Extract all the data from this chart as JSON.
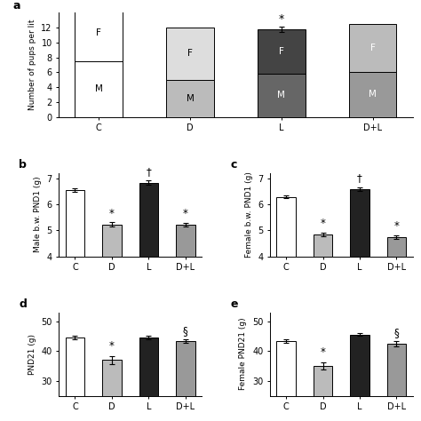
{
  "panel_a": {
    "categories": [
      "C",
      "D",
      "L",
      "D+L"
    ],
    "male_values": [
      7.5,
      5.0,
      5.8,
      6.0
    ],
    "female_values": [
      7.5,
      7.0,
      6.0,
      6.5
    ],
    "male_colors": [
      "#ffffff",
      "#bbbbbb",
      "#666666",
      "#999999"
    ],
    "female_colors": [
      "#ffffff",
      "#dddddd",
      "#444444",
      "#bbbbbb"
    ],
    "ylabel": "Number of pups per lit",
    "ylim": [
      0,
      14
    ],
    "yticks": [
      0,
      2,
      4,
      6,
      8,
      10,
      12
    ],
    "error_L_total": 11.8,
    "error_L_err": 0.35
  },
  "panel_b": {
    "categories": [
      "C",
      "D",
      "L",
      "D+L"
    ],
    "values": [
      6.55,
      5.22,
      6.82,
      5.22
    ],
    "errors": [
      0.06,
      0.08,
      0.08,
      0.07
    ],
    "colors": [
      "#ffffff",
      "#bbbbbb",
      "#222222",
      "#999999"
    ],
    "ylabel": "Male b.w. PND1 (g)",
    "ylim": [
      4,
      7.2
    ],
    "yticks": [
      4,
      5,
      6,
      7
    ],
    "annotations": [
      "",
      "*",
      "†",
      "*"
    ],
    "annot_offsets": [
      0,
      0.12,
      0.12,
      0.12
    ]
  },
  "panel_c": {
    "categories": [
      "C",
      "D",
      "L",
      "D+L"
    ],
    "values": [
      6.28,
      4.85,
      6.58,
      4.75
    ],
    "errors": [
      0.05,
      0.07,
      0.07,
      0.07
    ],
    "colors": [
      "#ffffff",
      "#bbbbbb",
      "#222222",
      "#999999"
    ],
    "ylabel": "Female b.w. PND1 (g)",
    "ylim": [
      4,
      7.2
    ],
    "yticks": [
      4,
      5,
      6,
      7
    ],
    "annotations": [
      "",
      "*",
      "†",
      "*"
    ],
    "annot_offsets": [
      0,
      0.12,
      0.12,
      0.12
    ]
  },
  "panel_d": {
    "categories": [
      "C",
      "D",
      "L",
      "D+L"
    ],
    "values": [
      44.5,
      37.0,
      44.5,
      43.5
    ],
    "errors": [
      0.5,
      1.3,
      0.5,
      0.6
    ],
    "colors": [
      "#ffffff",
      "#bbbbbb",
      "#222222",
      "#999999"
    ],
    "ylabel": "PND21 (g)",
    "ylim": [
      25,
      53
    ],
    "yticks": [
      30,
      40,
      50
    ],
    "annotations": [
      "",
      "*",
      "",
      "§"
    ],
    "annot_offsets": [
      0,
      1.5,
      0,
      0.8
    ]
  },
  "panel_e": {
    "categories": [
      "C",
      "D",
      "L",
      "D+L"
    ],
    "values": [
      43.5,
      35.0,
      45.5,
      42.5
    ],
    "errors": [
      0.6,
      1.3,
      0.5,
      0.8
    ],
    "colors": [
      "#ffffff",
      "#bbbbbb",
      "#222222",
      "#999999"
    ],
    "ylabel": "Female PND21 (g)",
    "ylim": [
      25,
      53
    ],
    "yticks": [
      30,
      40,
      50
    ],
    "annotations": [
      "",
      "*",
      "",
      "§"
    ],
    "annot_offsets": [
      0,
      1.5,
      0,
      0.8
    ]
  }
}
